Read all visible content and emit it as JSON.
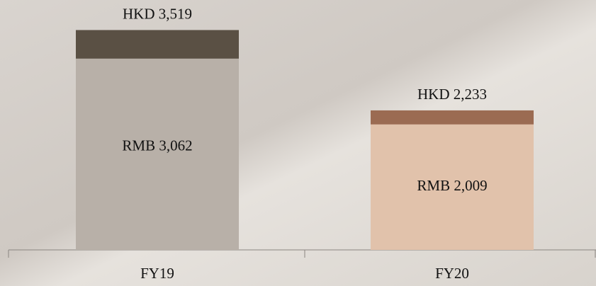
{
  "chart_data": {
    "type": "overlap-bar",
    "categories": [
      "FY19",
      "FY20"
    ],
    "series": [
      {
        "colors": [
          "#5a5044",
          "#9b6b52"
        ],
        "values": [
          3519,
          2233
        ],
        "value_labels": [
          "HKD 3,519",
          "HKD 2,233"
        ]
      },
      {
        "colors": [
          "#b8b0a8",
          "#e1c2ab"
        ],
        "values": [
          3062,
          2009
        ],
        "value_labels": [
          "RMB 3,062",
          "RMB 2,009"
        ]
      }
    ],
    "ylim": [
      0,
      4000
    ]
  }
}
